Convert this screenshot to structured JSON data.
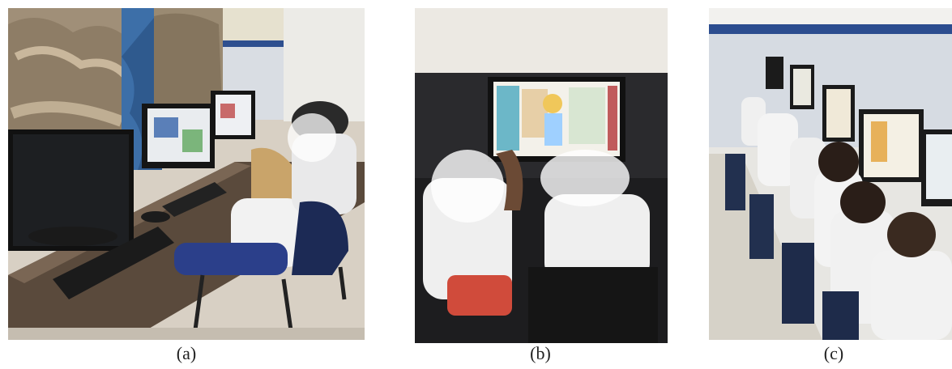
{
  "figure": {
    "captions": [
      "(a)",
      "(b)",
      "(c)"
    ],
    "panels": [
      {
        "subject": "photo-computer-lab-girl-at-monitor"
      },
      {
        "subject": "photo-two-children-at-monitor"
      },
      {
        "subject": "photo-row-of-children-at-computers"
      }
    ]
  }
}
